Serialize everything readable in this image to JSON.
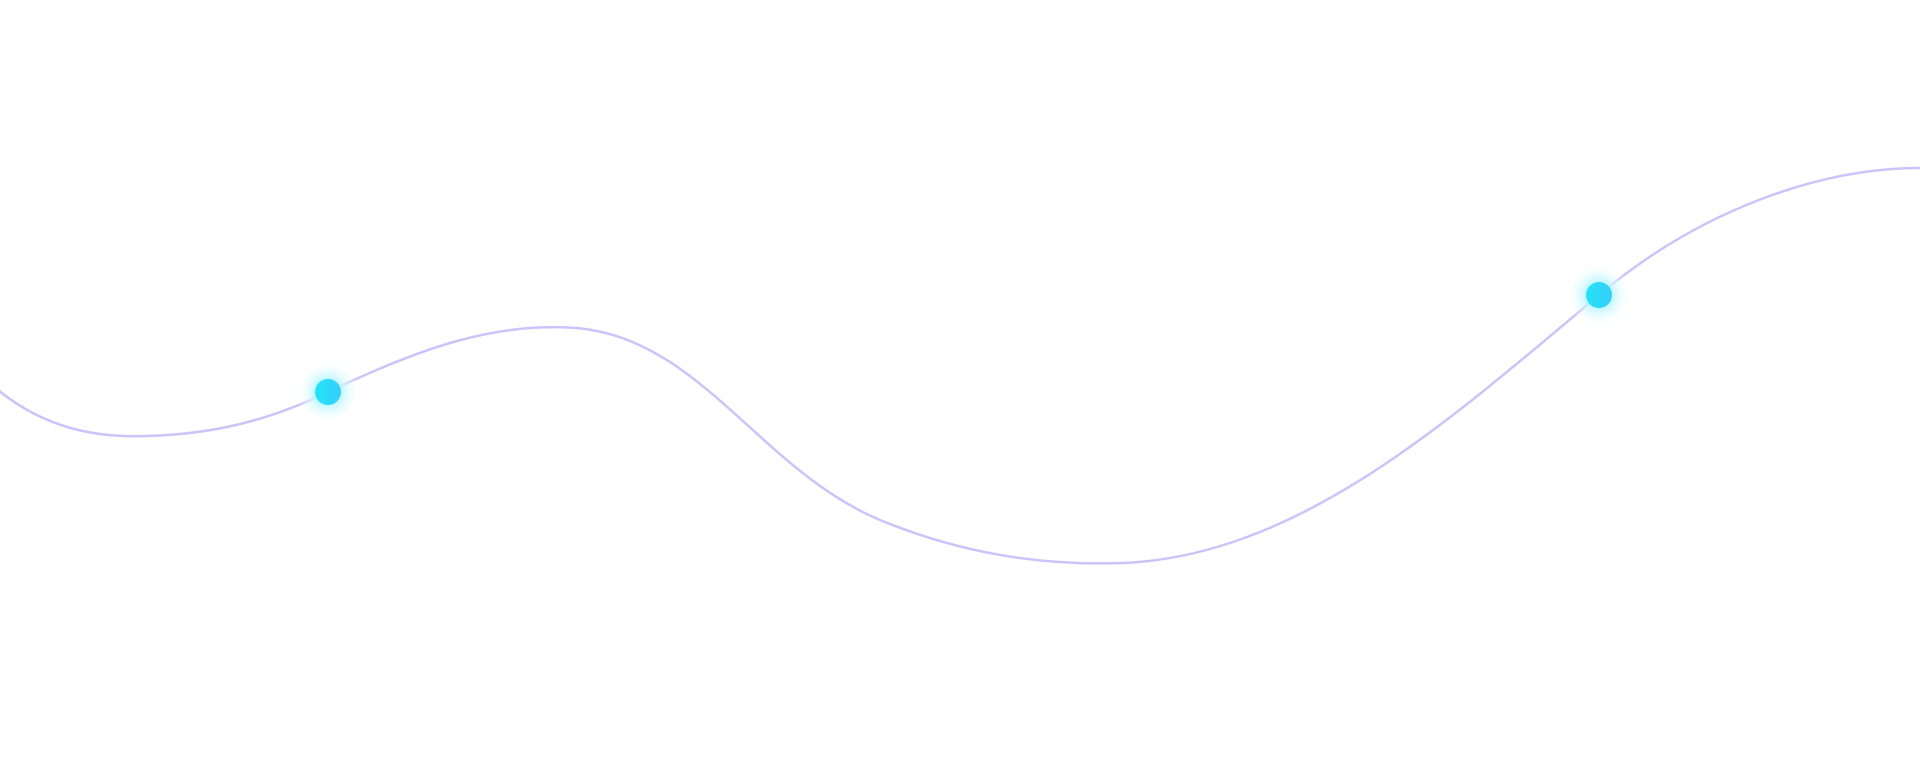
{
  "decoration": {
    "curve_color": "#cdc3fb",
    "dot_color_start": "#22e4f5",
    "dot_color_end": "#38cdfb",
    "glow_color": "#b8f6ff",
    "dots": [
      "node-left",
      "node-right"
    ]
  }
}
